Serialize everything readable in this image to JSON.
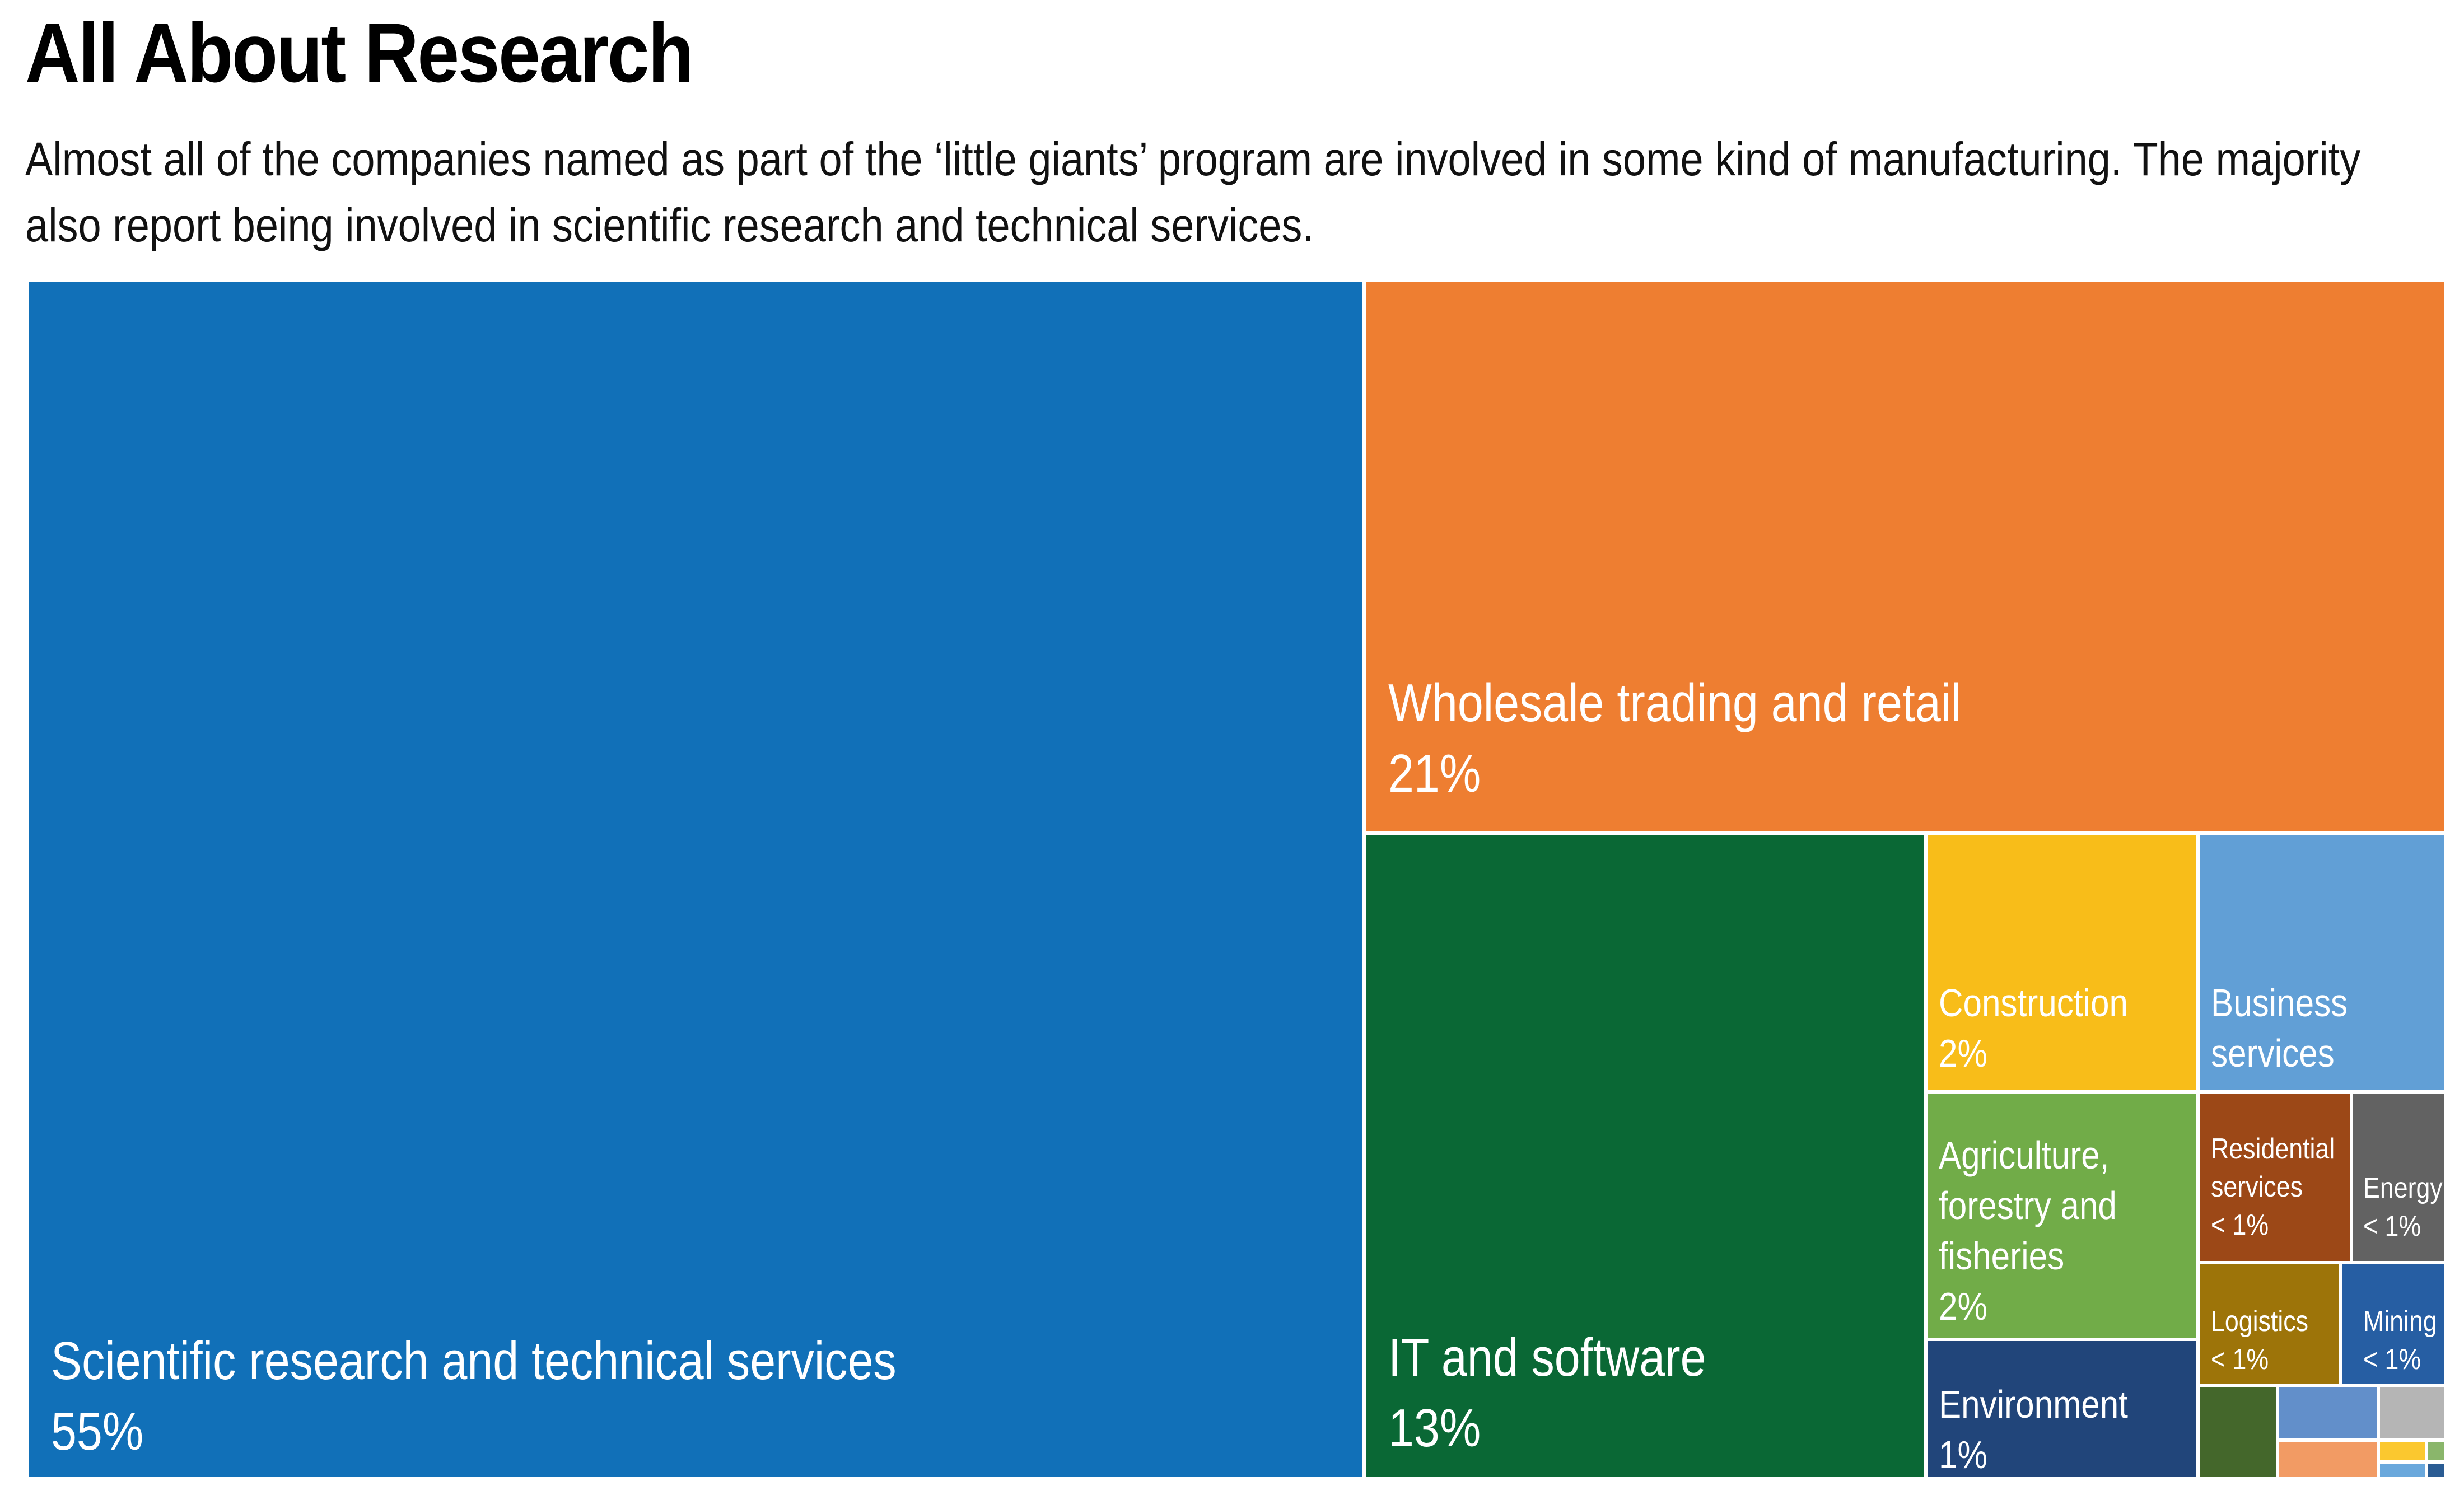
{
  "title": "All About Research",
  "subtitle": "Almost all of the companies named as part of the ‘little giants’ program are involved in some kind of manufacturing. The majority also report being involved in scientific research and technical services.",
  "chart_data": {
    "type": "treemap",
    "unit": "%",
    "tiles": [
      {
        "name": "Scientific research and technical services",
        "value_label": "55%",
        "value": 55,
        "color": "#1170b8"
      },
      {
        "name": "Wholesale trading and retail",
        "value_label": "21%",
        "value": 21,
        "color": "#ee7e31"
      },
      {
        "name": "IT and software",
        "value_label": "13%",
        "value": 13,
        "color": "#0a6835"
      },
      {
        "name": "Construction",
        "value_label": "2%",
        "value": 2,
        "color": "#f8bd19"
      },
      {
        "name": "Business services",
        "value_label": "2%",
        "value": 2,
        "color": "#619fd6"
      },
      {
        "name": "Agriculture, forestry and fisheries",
        "display_name": "Agriculture,\nforestry and\nfisheries",
        "value_label": "2%",
        "value": 2,
        "color": "#71ac48"
      },
      {
        "name": "Residential services",
        "display_name": "Residential\nservices",
        "value_label": "< 1%",
        "value": 0.8,
        "color": "#9c4817"
      },
      {
        "name": "Energy",
        "value_label": "< 1%",
        "value": 0.6,
        "color": "#626262"
      },
      {
        "name": "Environment",
        "value_label": "1%",
        "value": 1,
        "color": "#21457a"
      },
      {
        "name": "Logistics",
        "value_label": "< 1%",
        "value": 0.6,
        "color": "#9d7409"
      },
      {
        "name": "Mining",
        "value_label": "< 1%",
        "value": 0.5,
        "color": "#265ea3"
      },
      {
        "value": 0.3,
        "color": "#44672b"
      },
      {
        "value": 0.25,
        "color": "#628fca"
      },
      {
        "value": 0.2,
        "color": "#b5b5b5"
      },
      {
        "value": 0.2,
        "color": "#f29b64"
      },
      {
        "value": 0.08,
        "color": "#fbc82f"
      },
      {
        "value": 0.06,
        "color": "#8ab66b"
      },
      {
        "value": 0.08,
        "color": "#6aa8dc"
      },
      {
        "value": 0.06,
        "color": "#2a5c93"
      }
    ]
  }
}
